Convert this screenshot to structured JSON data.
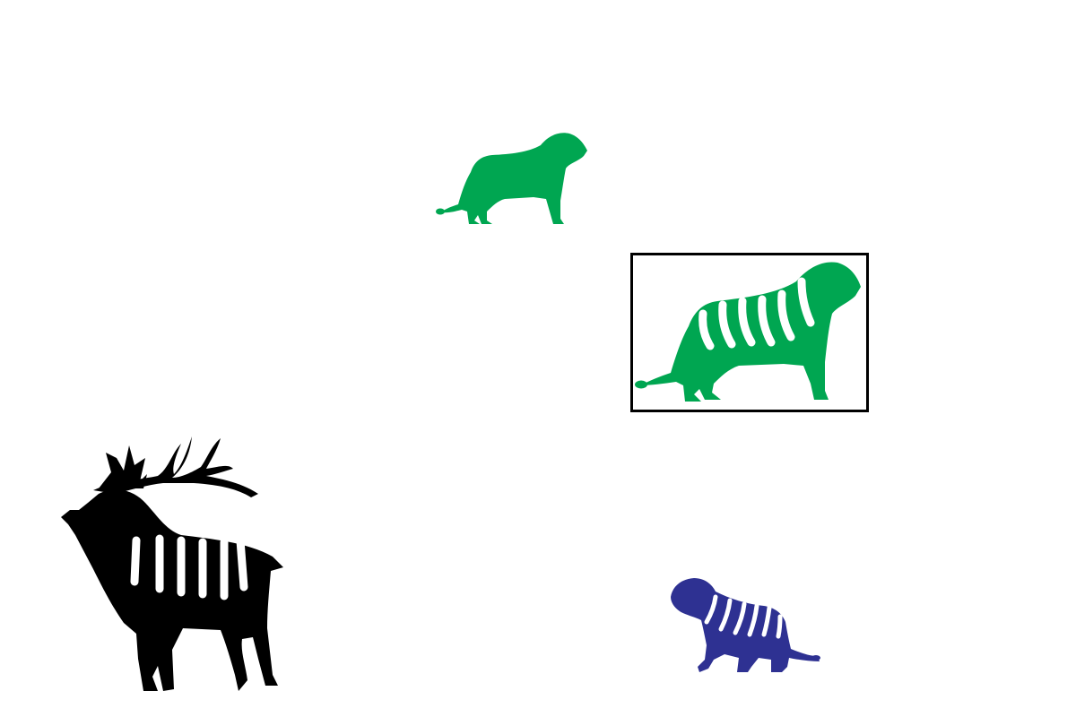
{
  "scene": {
    "background": "#ffffff",
    "figures": [
      {
        "kind": "lion",
        "pattern": "plain",
        "color": "#00a651",
        "facing": "right",
        "selected": false
      },
      {
        "kind": "lion",
        "pattern": "striped",
        "color": "#00a651",
        "facing": "right",
        "selected": true
      },
      {
        "kind": "deer",
        "pattern": "striped",
        "color": "#000000",
        "facing": "left",
        "selected": false
      },
      {
        "kind": "lion",
        "pattern": "striped",
        "color": "#2e3192",
        "facing": "left",
        "selected": false
      }
    ],
    "selection_frame_color": "#000000"
  }
}
